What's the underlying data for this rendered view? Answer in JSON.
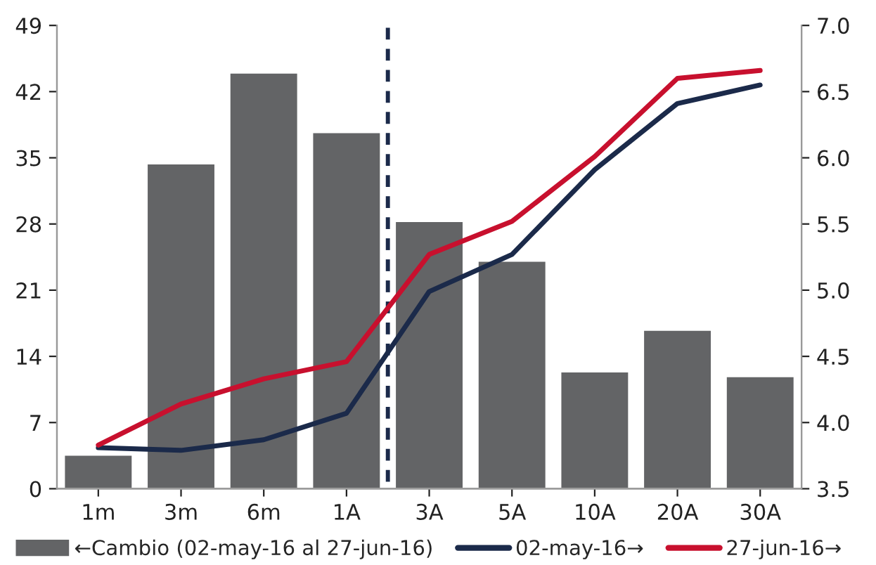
{
  "chart_data": {
    "type": "bar",
    "categories": [
      "1m",
      "3m",
      "6m",
      "1A",
      "3A",
      "5A",
      "10A",
      "20A",
      "30A"
    ],
    "series": [
      {
        "name": "←Cambio (02-may-16 al 27-jun-16)",
        "color": "#636466",
        "values": [
          3.6,
          34.4,
          44.0,
          37.7,
          28.3,
          24.1,
          12.4,
          16.8,
          11.9
        ]
      },
      {
        "name": "02-may-16→",
        "type": "line",
        "axis": "y2",
        "color": "#1b2a4a",
        "values": [
          3.81,
          3.79,
          3.87,
          4.07,
          4.99,
          5.27,
          5.91,
          6.41,
          6.55
        ]
      },
      {
        "name": "27-jun-16→",
        "type": "line",
        "axis": "y2",
        "color": "#c8102e",
        "values": [
          3.83,
          4.14,
          4.33,
          4.46,
          5.27,
          5.52,
          6.01,
          6.6,
          6.66
        ]
      }
    ],
    "ylim": [
      0,
      49
    ],
    "yticks": [
      0,
      7,
      14,
      21,
      28,
      35,
      42,
      49
    ],
    "y2lim": [
      3.5,
      7.0
    ],
    "y2ticks": [
      {
        "value": 3.5,
        "label": "3.5"
      },
      {
        "value": 4.0,
        "label": "4.0"
      },
      {
        "value": 4.5,
        "label": "4.5"
      },
      {
        "value": 5.0,
        "label": "5.0"
      },
      {
        "value": 5.5,
        "label": "5.5"
      },
      {
        "value": 6.0,
        "label": "6.0"
      },
      {
        "value": 6.5,
        "label": "6.5"
      },
      {
        "value": 7.0,
        "label": "7.0"
      }
    ],
    "grid": false,
    "legend": "bottom",
    "marker": "none",
    "line_style": "solid"
  }
}
